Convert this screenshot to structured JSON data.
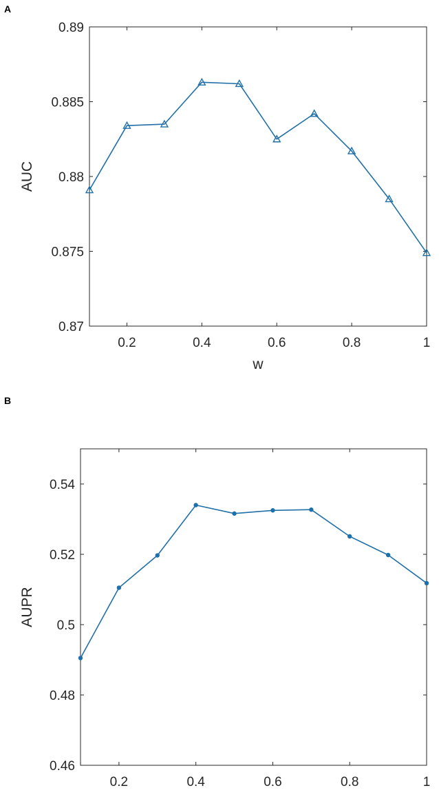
{
  "figure": {
    "panels": [
      {
        "letter": "A"
      },
      {
        "letter": "B"
      }
    ]
  },
  "chart_data": [
    {
      "type": "line",
      "panel": "A",
      "xlabel": "w",
      "ylabel": "AUC",
      "xlim": [
        0.1,
        1
      ],
      "ylim": [
        0.87,
        0.89
      ],
      "xticks": [
        0.2,
        0.4,
        0.6,
        0.8,
        1
      ],
      "xtick_labels": [
        "0.2",
        "0.4",
        "0.6",
        "0.8",
        "1"
      ],
      "yticks": [
        0.87,
        0.875,
        0.88,
        0.885,
        0.89
      ],
      "ytick_labels": [
        "0.87",
        "0.875",
        "0.88",
        "0.885",
        "0.89"
      ],
      "marker": "triangle",
      "color": "#1f6fa8",
      "grid": false,
      "x": [
        0.1,
        0.2,
        0.3,
        0.4,
        0.5,
        0.6,
        0.7,
        0.8,
        0.9,
        1.0
      ],
      "y": [
        0.8791,
        0.8834,
        0.8835,
        0.8863,
        0.8862,
        0.8825,
        0.8842,
        0.8817,
        0.8785,
        0.8749
      ]
    },
    {
      "type": "line",
      "panel": "B",
      "xlabel": "w",
      "ylabel": "AUPR",
      "xlim": [
        0.1,
        1
      ],
      "ylim": [
        0.46,
        0.55
      ],
      "xticks": [
        0.2,
        0.4,
        0.6,
        0.8,
        1
      ],
      "xtick_labels": [
        "0.2",
        "0.4",
        "0.6",
        "0.8",
        "1"
      ],
      "yticks": [
        0.46,
        0.48,
        0.5,
        0.52,
        0.54
      ],
      "ytick_labels": [
        "0.46",
        "0.48",
        "0.5",
        "0.52",
        "0.54"
      ],
      "marker": "dot",
      "color": "#1f6fa8",
      "grid": false,
      "x": [
        0.1,
        0.2,
        0.3,
        0.4,
        0.5,
        0.6,
        0.7,
        0.8,
        0.9,
        1.0
      ],
      "y": [
        0.4905,
        0.5105,
        0.5197,
        0.534,
        0.5316,
        0.5325,
        0.5327,
        0.5251,
        0.5198,
        0.5118
      ]
    }
  ]
}
